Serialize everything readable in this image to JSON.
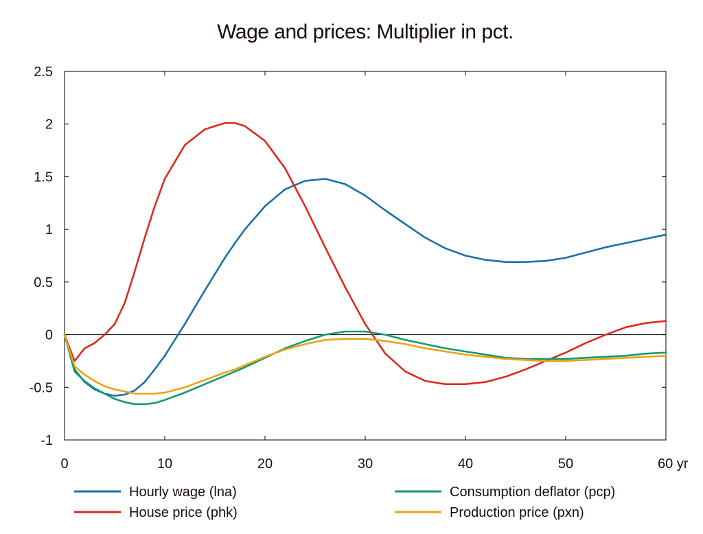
{
  "chart_data": {
    "type": "line",
    "title": "Wage and prices: Multiplier in pct.",
    "xlabel": "",
    "ylabel": "",
    "xlim": [
      0,
      60
    ],
    "ylim": [
      -1,
      2.5
    ],
    "x_ticks": [
      0,
      10,
      20,
      30,
      40,
      50,
      60
    ],
    "x_tick_labels": [
      "0",
      "10",
      "20",
      "30",
      "40",
      "50",
      "60 yr"
    ],
    "y_ticks": [
      -1,
      -0.5,
      0,
      0.5,
      1,
      1.5,
      2,
      2.5
    ],
    "y_tick_labels": [
      "-1",
      "-0.5",
      "0",
      "0.5",
      "1",
      "1.5",
      "2",
      "2.5"
    ],
    "grid": false,
    "zero_line": true,
    "legend_position": "bottom",
    "x": [
      0,
      1,
      2,
      3,
      4,
      5,
      6,
      7,
      8,
      9,
      10,
      12,
      14,
      16,
      17,
      18,
      20,
      22,
      24,
      26,
      28,
      30,
      32,
      34,
      36,
      38,
      40,
      42,
      44,
      46,
      48,
      50,
      52,
      54,
      56,
      58,
      60
    ],
    "series": [
      {
        "name": "Hourly wage (lna)",
        "color": "#1a70aa",
        "values": [
          0,
          -0.33,
          -0.45,
          -0.52,
          -0.56,
          -0.58,
          -0.57,
          -0.53,
          -0.45,
          -0.33,
          -0.2,
          0.1,
          0.42,
          0.73,
          0.87,
          1.0,
          1.22,
          1.38,
          1.46,
          1.48,
          1.43,
          1.32,
          1.18,
          1.05,
          0.92,
          0.82,
          0.75,
          0.71,
          0.69,
          0.69,
          0.7,
          0.73,
          0.78,
          0.83,
          0.87,
          0.91,
          0.95
        ]
      },
      {
        "name": "House price (phk)",
        "color": "#dd2a1e",
        "values": [
          0,
          -0.25,
          -0.13,
          -0.08,
          0.0,
          0.1,
          0.3,
          0.6,
          0.92,
          1.22,
          1.48,
          1.8,
          1.95,
          2.01,
          2.01,
          1.98,
          1.84,
          1.58,
          1.22,
          0.83,
          0.45,
          0.1,
          -0.18,
          -0.35,
          -0.44,
          -0.47,
          -0.47,
          -0.45,
          -0.4,
          -0.33,
          -0.25,
          -0.17,
          -0.08,
          0.0,
          0.07,
          0.11,
          0.13
        ]
      },
      {
        "name": "Consumption deflator (pcp)",
        "color": "#149870",
        "values": [
          0,
          -0.35,
          -0.44,
          -0.51,
          -0.56,
          -0.61,
          -0.64,
          -0.66,
          -0.66,
          -0.65,
          -0.62,
          -0.55,
          -0.47,
          -0.39,
          -0.35,
          -0.31,
          -0.22,
          -0.13,
          -0.06,
          0.0,
          0.03,
          0.03,
          0.0,
          -0.05,
          -0.09,
          -0.13,
          -0.16,
          -0.19,
          -0.22,
          -0.23,
          -0.23,
          -0.23,
          -0.22,
          -0.21,
          -0.2,
          -0.18,
          -0.17
        ]
      },
      {
        "name": "Production price (pxn)",
        "color": "#eaa314",
        "values": [
          0,
          -0.3,
          -0.38,
          -0.44,
          -0.49,
          -0.52,
          -0.54,
          -0.56,
          -0.56,
          -0.56,
          -0.55,
          -0.5,
          -0.43,
          -0.36,
          -0.33,
          -0.29,
          -0.21,
          -0.14,
          -0.09,
          -0.05,
          -0.04,
          -0.04,
          -0.06,
          -0.09,
          -0.13,
          -0.16,
          -0.19,
          -0.21,
          -0.23,
          -0.24,
          -0.25,
          -0.25,
          -0.24,
          -0.23,
          -0.22,
          -0.21,
          -0.2
        ]
      }
    ]
  }
}
